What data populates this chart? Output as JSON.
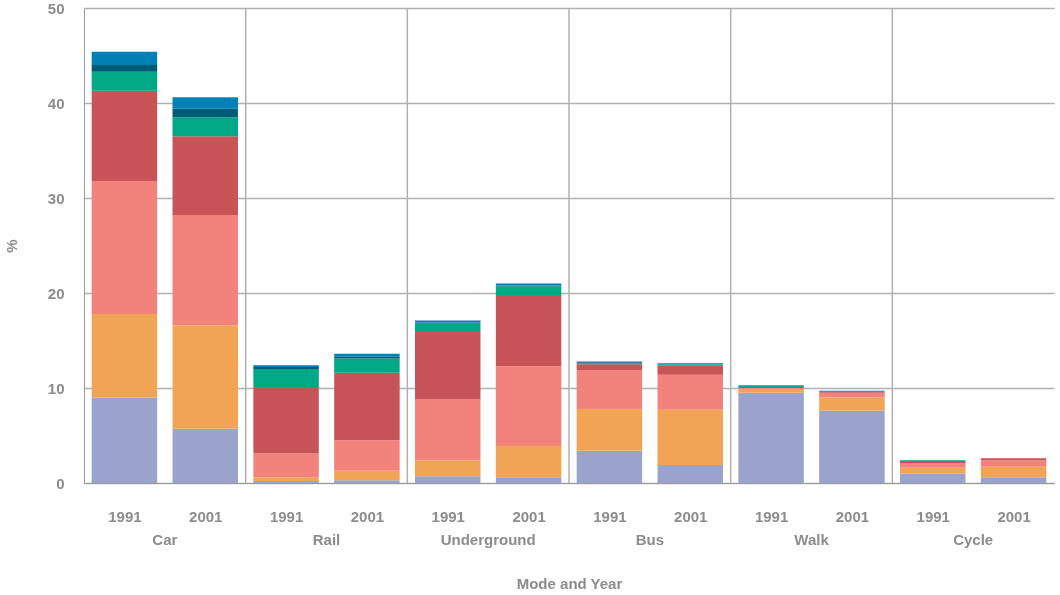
{
  "chart_data": {
    "type": "bar",
    "stacked": true,
    "xlabel": "Mode and Year",
    "ylabel": "%",
    "categories": [
      "1991",
      "2001",
      "1991",
      "2001",
      "1991",
      "2001",
      "1991",
      "2001",
      "1991",
      "2001",
      "1991",
      "2001"
    ],
    "annotations": [
      "Car",
      "Rail",
      "Underground",
      "Bus",
      "Walk",
      "Cycle"
    ],
    "series": [
      {
        "color": "#9aa3cc",
        "values": [
          9.0,
          5.7,
          0.2,
          0.3,
          0.7,
          0.6,
          3.4,
          1.9,
          9.5,
          7.6,
          1.0,
          0.6
        ]
      },
      {
        "color": "#f2a455",
        "values": [
          8.8,
          10.9,
          0.4,
          1.0,
          1.7,
          3.3,
          4.4,
          5.8,
          0.4,
          1.4,
          0.6,
          1.1
        ]
      },
      {
        "color": "#f1837c",
        "values": [
          14.0,
          11.6,
          2.5,
          3.2,
          6.4,
          8.4,
          4.1,
          3.7,
          0.1,
          0.5,
          0.5,
          0.7
        ]
      },
      {
        "color": "#c95457",
        "values": [
          9.5,
          8.3,
          7.0,
          7.1,
          7.1,
          7.5,
          0.6,
          1.0,
          0.1,
          0.1,
          0.1,
          0.2
        ]
      },
      {
        "color": "#00a886",
        "values": [
          2.0,
          2.0,
          1.9,
          1.5,
          0.9,
          0.9,
          0.1,
          0.1,
          0.2,
          0.0,
          0.2,
          0.0
        ]
      },
      {
        "color": "#005b77",
        "values": [
          0.7,
          0.9,
          0.2,
          0.2,
          0.1,
          0.1,
          0.1,
          0.0,
          0.0,
          0.0,
          0.0,
          0.0
        ]
      },
      {
        "color": "#0080b5",
        "values": [
          1.4,
          1.2,
          0.2,
          0.3,
          0.2,
          0.2,
          0.1,
          0.1,
          0.0,
          0.1,
          0.0,
          0.0
        ]
      }
    ],
    "ylim": [
      0,
      50
    ],
    "yticks": [
      0,
      10,
      20,
      30,
      40,
      50
    ],
    "grid": true
  }
}
